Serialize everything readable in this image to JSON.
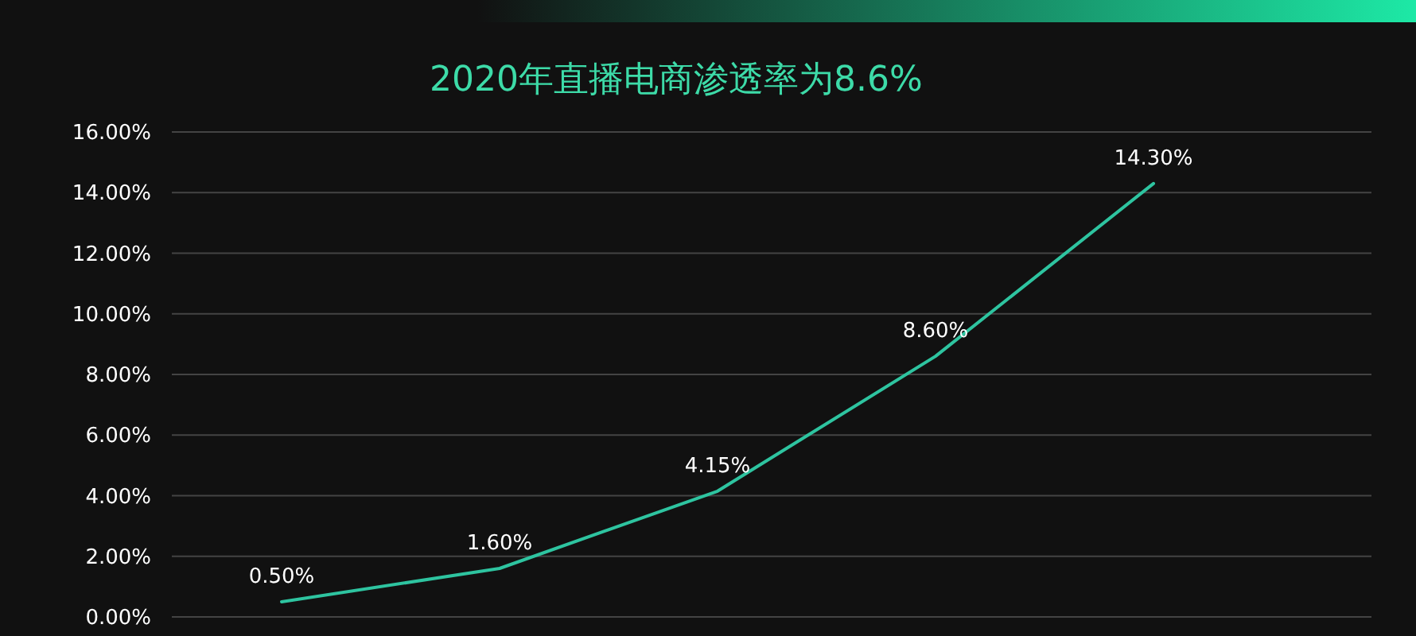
{
  "chart_data": {
    "type": "line",
    "title": "2020年直播电商渗透率为8.6%",
    "categories": [
      null,
      null,
      null,
      null,
      null
    ],
    "series": [
      {
        "color": "#2ec4a0",
        "values": [
          0.5,
          1.6,
          4.15,
          8.6,
          14.3
        ],
        "value_labels": [
          "0.50%",
          "1.60%",
          "4.15%",
          "8.60%",
          "14.30%"
        ]
      }
    ],
    "ylim": [
      0,
      16
    ],
    "yticks": [
      {
        "value": 0,
        "label": "0.00%"
      },
      {
        "value": 2,
        "label": "2.00%"
      },
      {
        "value": 4,
        "label": "4.00%"
      },
      {
        "value": 6,
        "label": "6.00%"
      },
      {
        "value": 8,
        "label": "8.00%"
      },
      {
        "value": 10,
        "label": "10.00%"
      },
      {
        "value": 12,
        "label": "12.00%"
      },
      {
        "value": 14,
        "label": "14.00%"
      },
      {
        "value": 16,
        "label": "16.00%"
      }
    ],
    "grid": "y",
    "marker": "none",
    "line_style": "solid"
  }
}
